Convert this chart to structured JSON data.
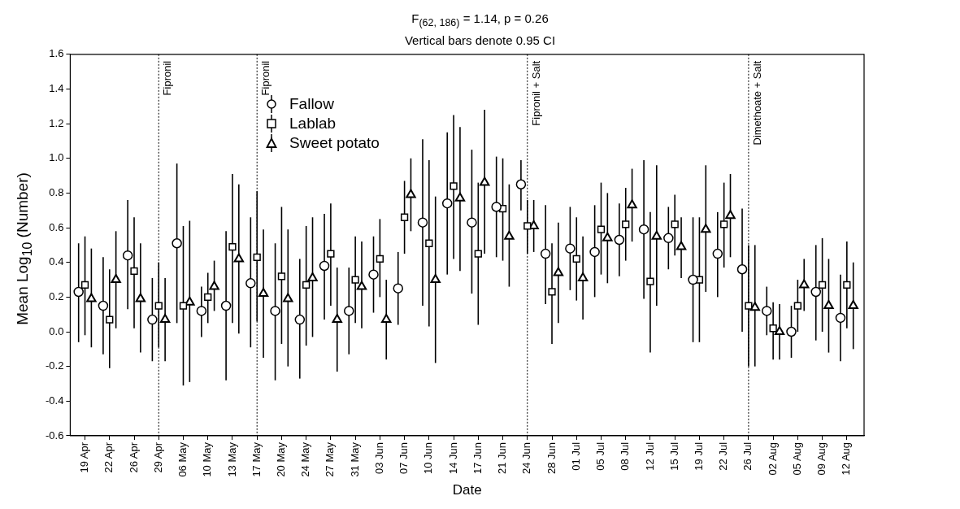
{
  "chart_data": {
    "type": "scatter",
    "title": "F$_{(62, 186)}$ = 1.14, p = 0.26",
    "subtitle": "Vertical bars denote 0.95 CI",
    "xlabel": "Date",
    "ylabel": "Mean Log$_{10}$ (Number)",
    "categories": [
      "19 Apr",
      "22 Apr",
      "26 Apr",
      "29 Apr",
      "06 May",
      "10 May",
      "13 May",
      "17 May",
      "20 May",
      "24 May",
      "27 May",
      "31 May",
      "03 Jun",
      "07 Jun",
      "10 Jun",
      "14 Jun",
      "17 Jun",
      "21 Jun",
      "24 Jun",
      "28 Jun",
      "01 Jul",
      "05 Jul",
      "08 Jul",
      "12 Jul",
      "15 Jul",
      "19 Jul",
      "22 Jul",
      "26 Jul",
      "02 Aug",
      "05 Aug",
      "09 Aug",
      "12 Aug"
    ],
    "series": [
      {
        "name": "Fallow",
        "color": "#000000",
        "marker": "circle",
        "values": [
          0.23,
          0.15,
          0.44,
          0.07,
          0.51,
          0.12,
          0.15,
          0.28,
          0.12,
          0.07,
          0.38,
          0.12,
          0.33,
          0.25,
          0.63,
          0.74,
          0.63,
          0.72,
          0.85,
          0.45,
          0.48,
          0.46,
          0.53,
          0.59,
          0.54,
          0.3,
          0.45,
          0.36,
          0.12,
          0.0,
          0.23,
          0.08
        ],
        "errors": [
          [
            -0.06,
            0.51
          ],
          [
            -0.13,
            0.43
          ],
          [
            0.13,
            0.76
          ],
          [
            -0.17,
            0.31
          ],
          [
            0.05,
            0.97
          ],
          [
            -0.03,
            0.26
          ],
          [
            -0.28,
            0.58
          ],
          [
            -0.09,
            0.66
          ],
          [
            -0.28,
            0.51
          ],
          [
            -0.27,
            0.42
          ],
          [
            0.07,
            0.68
          ],
          [
            -0.13,
            0.37
          ],
          [
            0.11,
            0.55
          ],
          [
            0.04,
            0.46
          ],
          [
            0.15,
            1.11
          ],
          [
            0.33,
            1.15
          ],
          [
            0.22,
            1.05
          ],
          [
            0.43,
            1.01
          ],
          [
            0.7,
            0.99
          ],
          [
            0.16,
            0.73
          ],
          [
            0.24,
            0.72
          ],
          [
            0.2,
            0.73
          ],
          [
            0.32,
            0.74
          ],
          [
            0.19,
            0.99
          ],
          [
            0.36,
            0.72
          ],
          [
            -0.06,
            0.66
          ],
          [
            0.2,
            0.69
          ],
          [
            0.0,
            0.71
          ],
          [
            -0.02,
            0.26
          ],
          [
            -0.15,
            0.15
          ],
          [
            -0.05,
            0.5
          ],
          [
            -0.17,
            0.33
          ]
        ]
      },
      {
        "name": "Lablab",
        "color": "#000000",
        "marker": "square",
        "values": [
          0.27,
          0.07,
          0.35,
          0.15,
          0.15,
          0.2,
          0.49,
          0.43,
          0.32,
          0.27,
          0.45,
          0.3,
          0.42,
          0.66,
          0.51,
          0.84,
          0.45,
          0.71,
          0.61,
          0.23,
          0.42,
          0.59,
          0.62,
          0.29,
          0.62,
          0.3,
          0.62,
          0.15,
          0.02,
          0.15,
          0.27,
          0.27
        ],
        "errors": [
          [
            -0.02,
            0.55
          ],
          [
            -0.21,
            0.36
          ],
          [
            0.02,
            0.66
          ],
          [
            -0.09,
            0.4
          ],
          [
            -0.31,
            0.61
          ],
          [
            0.05,
            0.34
          ],
          [
            0.05,
            0.91
          ],
          [
            0.06,
            0.81
          ],
          [
            -0.07,
            0.72
          ],
          [
            -0.08,
            0.61
          ],
          [
            0.15,
            0.74
          ],
          [
            0.05,
            0.55
          ],
          [
            0.2,
            0.65
          ],
          [
            0.45,
            0.87
          ],
          [
            0.03,
            0.99
          ],
          [
            0.42,
            1.25
          ],
          [
            0.04,
            0.86
          ],
          [
            0.41,
            1.0
          ],
          [
            0.45,
            0.76
          ],
          [
            -0.07,
            0.51
          ],
          [
            0.18,
            0.66
          ],
          [
            0.33,
            0.86
          ],
          [
            0.41,
            0.83
          ],
          [
            -0.12,
            0.69
          ],
          [
            0.44,
            0.79
          ],
          [
            -0.06,
            0.66
          ],
          [
            0.37,
            0.86
          ],
          [
            -0.2,
            0.5
          ],
          [
            -0.16,
            0.17
          ],
          [
            0.0,
            0.3
          ],
          [
            0.0,
            0.54
          ],
          [
            0.02,
            0.52
          ]
        ]
      },
      {
        "name": "Sweet potato",
        "color": "#000000",
        "marker": "triangle",
        "values": [
          0.19,
          0.3,
          0.19,
          0.07,
          0.17,
          0.26,
          0.42,
          0.22,
          0.19,
          0.31,
          0.07,
          0.26,
          0.07,
          0.79,
          0.3,
          0.77,
          0.86,
          0.55,
          0.61,
          0.34,
          0.31,
          0.54,
          0.73,
          0.55,
          0.49,
          0.59,
          0.67,
          0.14,
          0.0,
          0.27,
          0.15,
          0.15
        ],
        "errors": [
          [
            -0.09,
            0.48
          ],
          [
            0.02,
            0.58
          ],
          [
            -0.12,
            0.51
          ],
          [
            -0.17,
            0.31
          ],
          [
            -0.29,
            0.64
          ],
          [
            0.12,
            0.41
          ],
          [
            -0.01,
            0.85
          ],
          [
            -0.15,
            0.59
          ],
          [
            -0.2,
            0.59
          ],
          [
            -0.03,
            0.66
          ],
          [
            -0.23,
            0.37
          ],
          [
            0.02,
            0.52
          ],
          [
            -0.16,
            0.3
          ],
          [
            0.58,
            1.0
          ],
          [
            -0.18,
            0.78
          ],
          [
            0.35,
            1.18
          ],
          [
            0.45,
            1.28
          ],
          [
            0.26,
            0.85
          ],
          [
            0.46,
            0.76
          ],
          [
            0.05,
            0.63
          ],
          [
            0.07,
            0.55
          ],
          [
            0.28,
            0.8
          ],
          [
            0.52,
            0.94
          ],
          [
            0.15,
            0.96
          ],
          [
            0.31,
            0.66
          ],
          [
            0.23,
            0.96
          ],
          [
            0.43,
            0.91
          ],
          [
            -0.2,
            0.5
          ],
          [
            -0.16,
            0.16
          ],
          [
            0.12,
            0.42
          ],
          [
            -0.12,
            0.42
          ],
          [
            -0.1,
            0.4
          ]
        ]
      }
    ],
    "ylim": [
      -0.6,
      1.6
    ],
    "yticks": [
      -0.6,
      -0.4,
      -0.2,
      {
        "value": 0,
        "label": "0.0"
      },
      0.2,
      0.4,
      0.6,
      0.8,
      {
        "value": 1,
        "label": "1.0"
      },
      1.2,
      1.4,
      1.6
    ],
    "ref_lines": [
      {
        "axis": "x",
        "value": "29 Apr",
        "label": "Fipronil",
        "line_style": "dotted"
      },
      {
        "axis": "x",
        "value": "17 May",
        "label": "Fipronil",
        "line_style": "dotted"
      },
      {
        "axis": "x",
        "value": "24 Jun",
        "label": "Fipronil + Salt",
        "line_style": "dotted"
      },
      {
        "axis": "x",
        "value": "26 Jul",
        "label": "Dimethoate + Salt",
        "line_style": "dotted"
      }
    ],
    "grid": false,
    "legend": "top left"
  }
}
